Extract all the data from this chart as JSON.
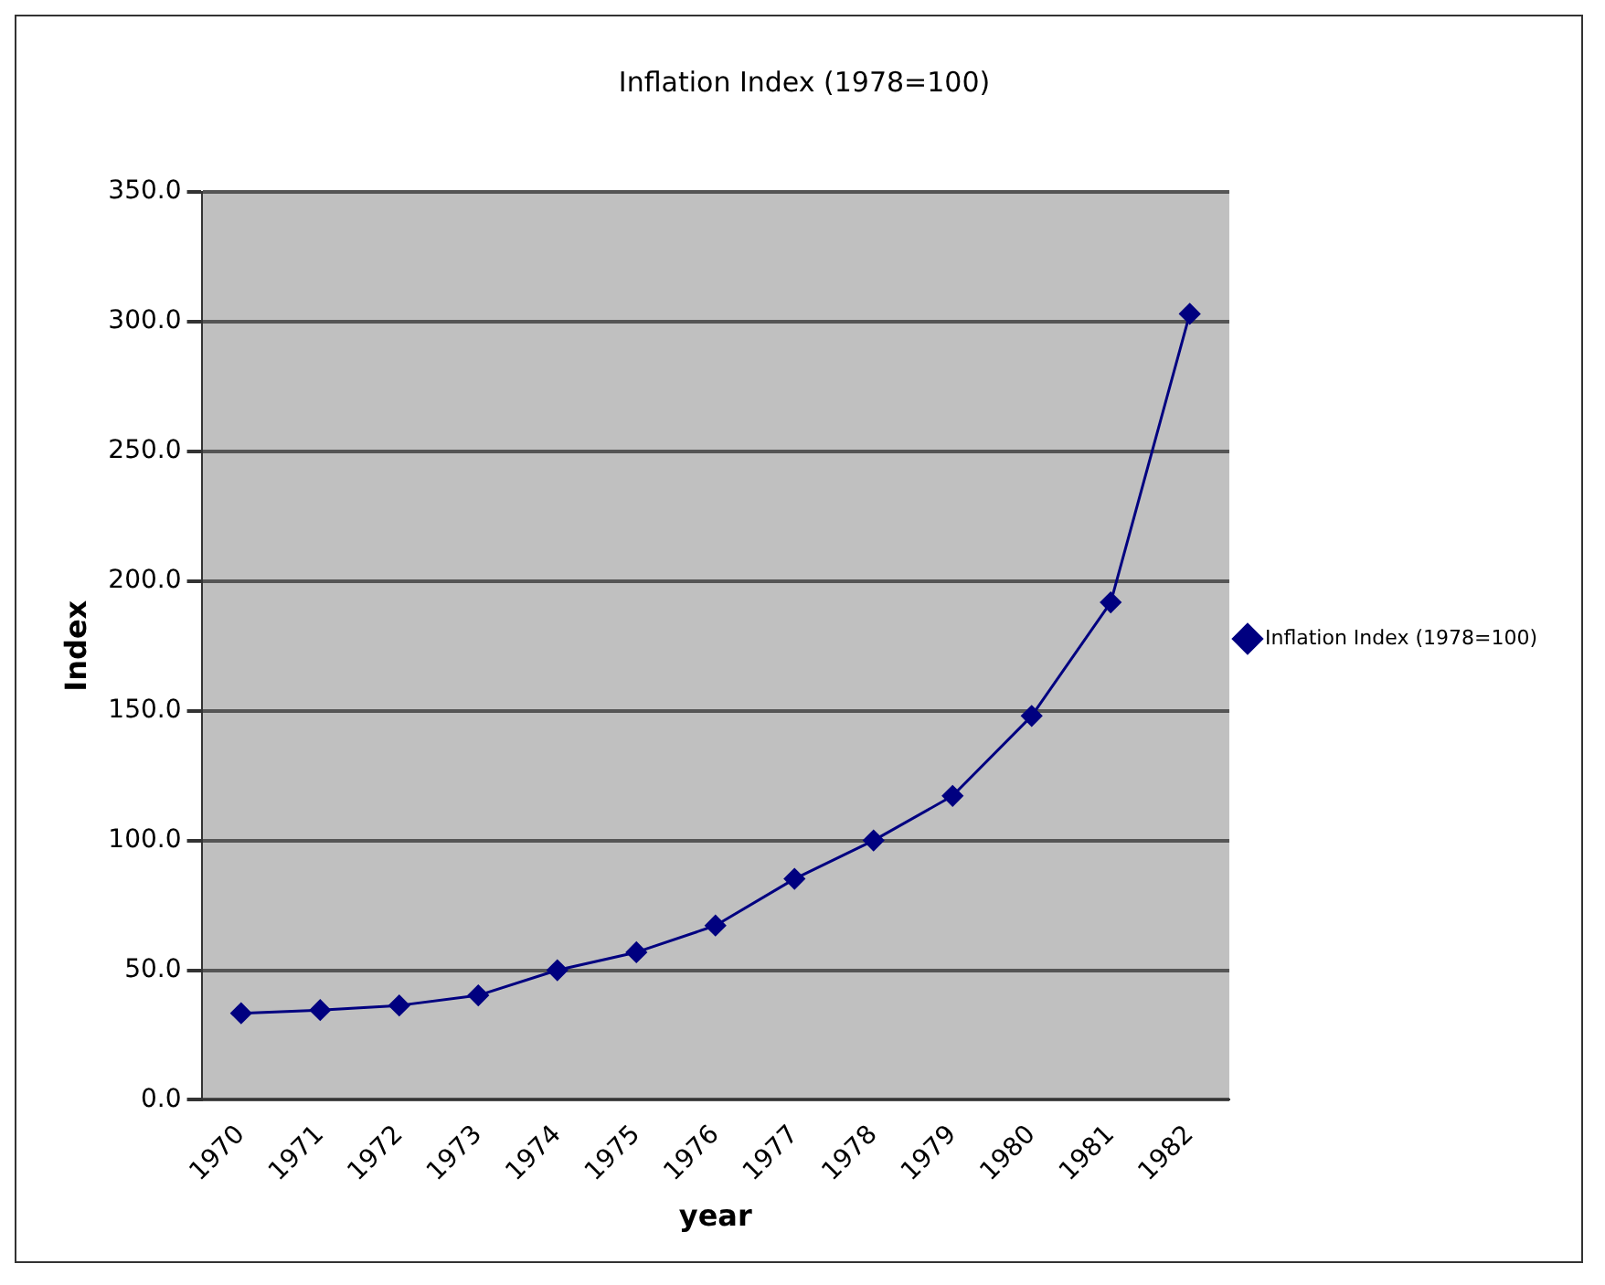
{
  "chart_data": {
    "type": "line",
    "title": "Inflation Index (1978=100)",
    "xlabel": "year",
    "ylabel": "Index",
    "categories": [
      "1970",
      "1971",
      "1972",
      "1973",
      "1974",
      "1975",
      "1976",
      "1977",
      "1978",
      "1979",
      "1980",
      "1981",
      "1982"
    ],
    "series": [
      {
        "name": "Inflation Index (1978=100)",
        "color": "#000080",
        "values": [
          33.4,
          34.6,
          36.4,
          40.3,
          50,
          56.9,
          67.2,
          85.2,
          100,
          117.2,
          148,
          191.8,
          303
        ]
      }
    ],
    "ylim": [
      0,
      350
    ],
    "yticks": [
      {
        "value": 0,
        "label": "0.0"
      },
      {
        "value": 50,
        "label": "50.0"
      },
      {
        "value": 100,
        "label": "100.0"
      },
      {
        "value": 150,
        "label": "150.0"
      },
      {
        "value": 200,
        "label": "200.0"
      },
      {
        "value": 250,
        "label": "250.0"
      },
      {
        "value": 300,
        "label": "300.0"
      },
      {
        "value": 350,
        "label": "350.0"
      }
    ],
    "grid": "y",
    "legend": "right",
    "marker": "diamond",
    "line_style": "solid"
  }
}
